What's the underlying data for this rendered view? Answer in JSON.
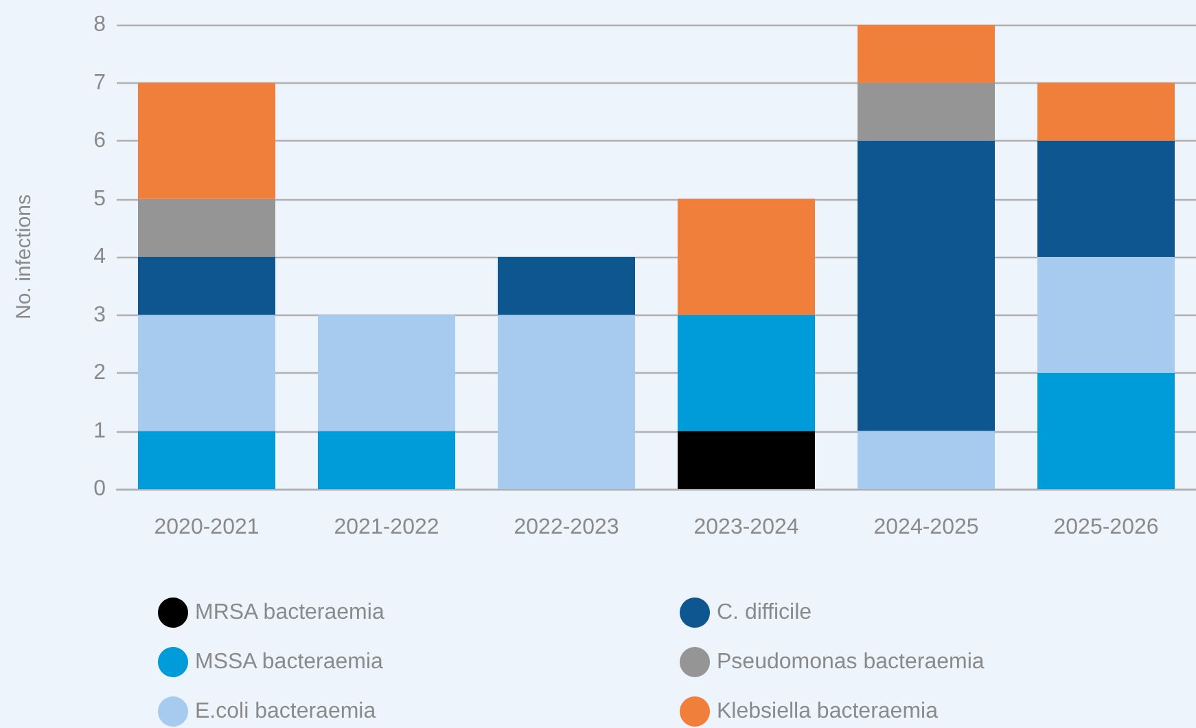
{
  "chart_data": {
    "type": "bar",
    "stacked": true,
    "ylabel": "No. infections",
    "categories": [
      "2020-2021",
      "2021-2022",
      "2022-2023",
      "2023-2024",
      "2024-2025",
      "2025-2026"
    ],
    "series": [
      {
        "name": "MRSA bacteraemia",
        "color": "#000000",
        "values": [
          0,
          0,
          0,
          1,
          0,
          0
        ]
      },
      {
        "name": "MSSA bacteraemia",
        "color": "#009bd9",
        "values": [
          1,
          1,
          0,
          2,
          0,
          2
        ]
      },
      {
        "name": "E.coli bacteraemia",
        "color": "#a6cbee",
        "values": [
          2,
          2,
          3,
          0,
          1,
          2
        ]
      },
      {
        "name": "C. difficile",
        "color": "#0d568f",
        "values": [
          1,
          0,
          1,
          0,
          5,
          2
        ]
      },
      {
        "name": "Pseudomonas bacteraemia",
        "color": "#959595",
        "values": [
          1,
          0,
          0,
          0,
          1,
          0
        ]
      },
      {
        "name": "Klebsiella bacteraemia",
        "color": "#f07f3c",
        "values": [
          2,
          0,
          0,
          2,
          1,
          1
        ]
      }
    ],
    "ylim": [
      0,
      8
    ],
    "yticks": [
      0,
      1,
      2,
      3,
      4,
      5,
      6,
      7,
      8
    ],
    "grid": "y",
    "legend": "bottom"
  }
}
